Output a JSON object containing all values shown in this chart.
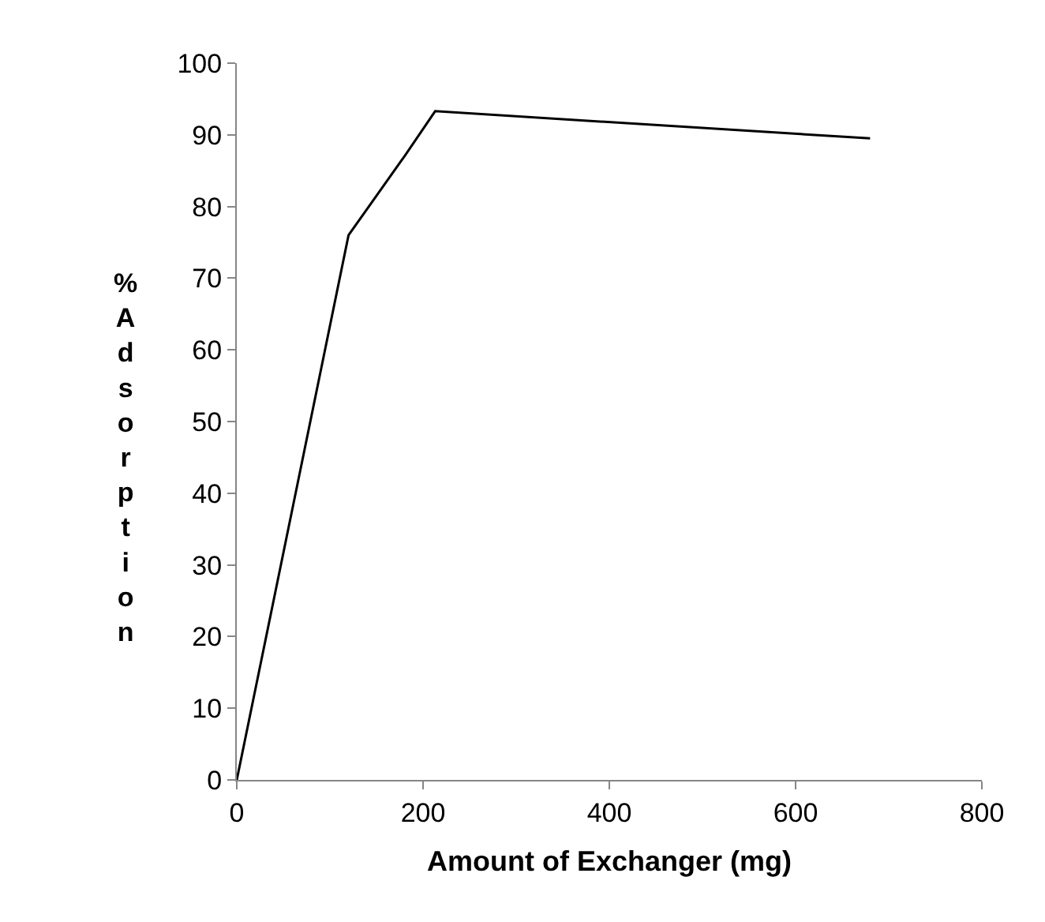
{
  "chart_data": {
    "type": "line",
    "xlabel": "Amount of Exchanger (mg)",
    "ylabel": "% Adsorption",
    "x": [
      0,
      120,
      180,
      213,
      680
    ],
    "series": [
      {
        "color": "#000000",
        "values": [
          0,
          76,
          87,
          93.3,
          89.5
        ]
      }
    ],
    "xlim": [
      0,
      800
    ],
    "xticks": [
      0,
      200,
      400,
      600,
      800
    ],
    "ylim": [
      0,
      100
    ],
    "yticks": [
      0,
      10,
      20,
      30,
      40,
      50,
      60,
      70,
      80,
      90,
      100
    ],
    "legend": false,
    "marker": "none",
    "line_style": "solid"
  }
}
